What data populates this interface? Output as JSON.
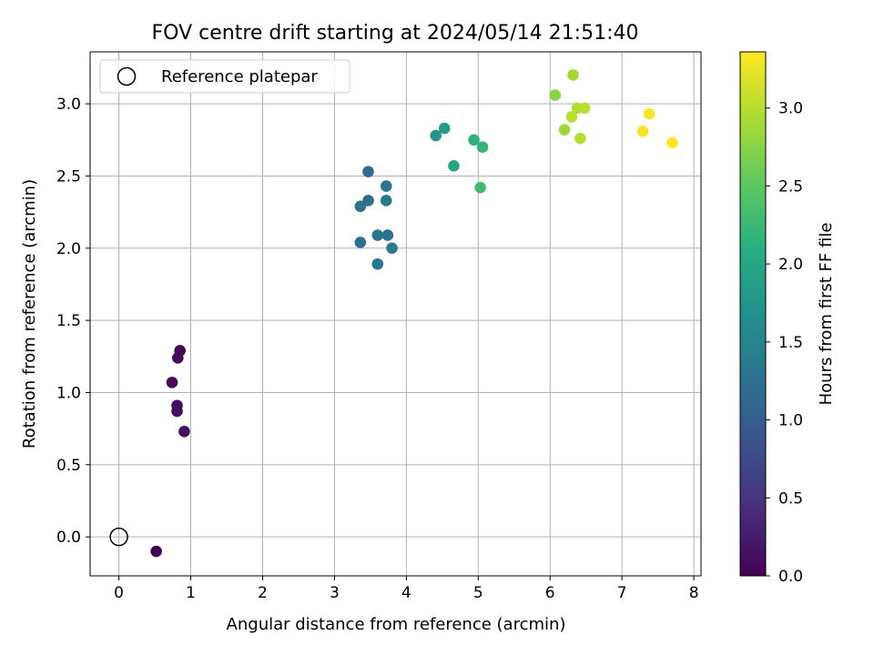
{
  "chart_data": {
    "type": "scatter",
    "title": "FOV centre drift starting at 2024/05/14 21:51:40",
    "xlabel": "Angular distance from reference (arcmin)",
    "ylabel": "Rotation from reference (arcmin)",
    "xlim": [
      -0.4,
      8.1
    ],
    "ylim": [
      -0.27,
      3.36
    ],
    "xticks": [
      0,
      1,
      2,
      3,
      4,
      5,
      6,
      7,
      8
    ],
    "xtick_labels": [
      "0",
      "1",
      "2",
      "3",
      "4",
      "5",
      "6",
      "7",
      "8"
    ],
    "yticks": [
      0.0,
      0.5,
      1.0,
      1.5,
      2.0,
      2.5,
      3.0
    ],
    "ytick_labels": [
      "0.0",
      "0.5",
      "1.0",
      "1.5",
      "2.0",
      "2.5",
      "3.0"
    ],
    "grid": true,
    "legend": {
      "placement": "top-left",
      "entries": [
        "Reference platepar"
      ]
    },
    "reference_point": {
      "x": 0,
      "y": 0
    },
    "colorbar": {
      "label": "Hours from first FF file",
      "range": [
        0.0,
        3.36
      ],
      "ticks": [
        0.0,
        0.5,
        1.0,
        1.5,
        2.0,
        2.5,
        3.0
      ],
      "tick_labels": [
        "0.0",
        "0.5",
        "1.0",
        "1.5",
        "2.0",
        "2.5",
        "3.0"
      ],
      "colormap": "viridis"
    },
    "points": [
      {
        "x": 0.52,
        "y": -0.1,
        "hours": 0.0
      },
      {
        "x": 0.85,
        "y": 1.29,
        "hours": 0.05
      },
      {
        "x": 0.82,
        "y": 1.24,
        "hours": 0.07
      },
      {
        "x": 0.74,
        "y": 1.07,
        "hours": 0.09
      },
      {
        "x": 0.81,
        "y": 0.91,
        "hours": 0.11
      },
      {
        "x": 0.81,
        "y": 0.87,
        "hours": 0.13
      },
      {
        "x": 0.91,
        "y": 0.73,
        "hours": 0.15
      },
      {
        "x": 3.47,
        "y": 2.53,
        "hours": 1.2
      },
      {
        "x": 3.72,
        "y": 2.43,
        "hours": 1.3
      },
      {
        "x": 3.47,
        "y": 2.33,
        "hours": 1.2
      },
      {
        "x": 3.72,
        "y": 2.33,
        "hours": 1.35
      },
      {
        "x": 3.36,
        "y": 2.29,
        "hours": 1.25
      },
      {
        "x": 3.6,
        "y": 2.09,
        "hours": 1.3
      },
      {
        "x": 3.74,
        "y": 2.09,
        "hours": 1.25
      },
      {
        "x": 3.36,
        "y": 2.04,
        "hours": 1.25
      },
      {
        "x": 3.8,
        "y": 2.0,
        "hours": 1.35
      },
      {
        "x": 3.6,
        "y": 1.89,
        "hours": 1.3
      },
      {
        "x": 4.53,
        "y": 2.83,
        "hours": 1.85
      },
      {
        "x": 4.41,
        "y": 2.78,
        "hours": 1.75
      },
      {
        "x": 4.94,
        "y": 2.75,
        "hours": 2.15
      },
      {
        "x": 5.06,
        "y": 2.7,
        "hours": 2.2
      },
      {
        "x": 4.66,
        "y": 2.57,
        "hours": 1.95
      },
      {
        "x": 5.03,
        "y": 2.42,
        "hours": 2.3
      },
      {
        "x": 6.32,
        "y": 3.2,
        "hours": 2.9
      },
      {
        "x": 6.07,
        "y": 3.06,
        "hours": 2.75
      },
      {
        "x": 6.38,
        "y": 2.97,
        "hours": 2.95
      },
      {
        "x": 6.48,
        "y": 2.97,
        "hours": 3.0
      },
      {
        "x": 6.3,
        "y": 2.91,
        "hours": 3.0
      },
      {
        "x": 6.2,
        "y": 2.82,
        "hours": 2.85
      },
      {
        "x": 6.42,
        "y": 2.76,
        "hours": 3.0
      },
      {
        "x": 7.38,
        "y": 2.93,
        "hours": 3.33
      },
      {
        "x": 7.29,
        "y": 2.81,
        "hours": 3.33
      },
      {
        "x": 7.7,
        "y": 2.73,
        "hours": 3.36
      }
    ]
  }
}
